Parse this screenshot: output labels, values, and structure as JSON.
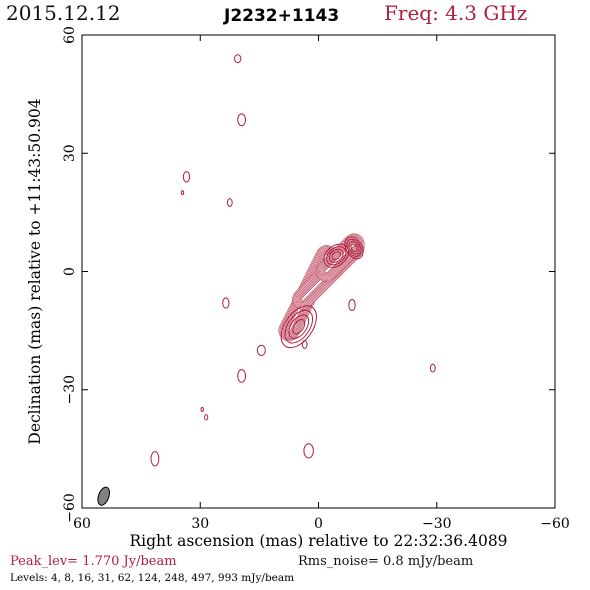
{
  "header": {
    "date": "2015.12.12",
    "source": "J2232+1143",
    "freq": "Freq: 4.3 GHz"
  },
  "footer": {
    "peak": "Peak_lev= 1.770 Jy/beam",
    "rms": "Rms_noise= 0.8 mJy/beam",
    "levels": "Levels: 4, 8, 16, 31, 62, 124, 248, 497, 993 mJy/beam"
  },
  "colors": {
    "contour": "#b0203e",
    "beam": "#808080",
    "axes": "#000000"
  },
  "chart_data": {
    "type": "contour",
    "xlabel": "Right ascension (mas) relative to 22:32:36.4089",
    "ylabel": "Declination (mas) relative to +11:43:50.904",
    "xlim": [
      60,
      -60
    ],
    "ylim": [
      -60,
      60
    ],
    "xticks": [
      60,
      30,
      0,
      -30,
      -60
    ],
    "xtick_labels": [
      "60",
      "30",
      "0",
      "−30",
      "−60"
    ],
    "yticks": [
      -60,
      -30,
      0,
      30,
      60
    ],
    "ytick_labels": [
      "−60",
      "−30",
      "0",
      "30",
      "60"
    ],
    "levels_mJy": [
      4,
      8,
      16,
      31,
      62,
      124,
      248,
      497,
      993
    ],
    "jet": {
      "stroke_levels": 9,
      "segments": [
        {
          "x1": 7.5,
          "y1": -15,
          "x2": -2,
          "y2": 4
        },
        {
          "x1": 4,
          "y1": -7,
          "x2": -9,
          "y2": 6
        },
        {
          "x1": -2,
          "y1": 0,
          "x2": -9,
          "y2": 7
        }
      ]
    },
    "components": [
      {
        "x": 5.0,
        "y": -14.0,
        "rx": 6.0,
        "ry": 3.5,
        "angle": -55
      },
      {
        "x": -4.5,
        "y": 4.0,
        "rx": 3.5,
        "ry": 2.5,
        "angle": -40
      },
      {
        "x": -9.0,
        "y": 6.0,
        "rx": 2.0,
        "ry": 3.0,
        "angle": -30
      }
    ],
    "blobs": [
      {
        "x": 20.5,
        "y": 54.0,
        "rx": 0.8,
        "ry": 1.0
      },
      {
        "x": 19.5,
        "y": 38.5,
        "rx": 1.0,
        "ry": 1.5
      },
      {
        "x": 33.5,
        "y": 24.0,
        "rx": 0.8,
        "ry": 1.3
      },
      {
        "x": 34.5,
        "y": 20.0,
        "rx": 0.3,
        "ry": 0.5
      },
      {
        "x": 22.5,
        "y": 17.5,
        "rx": 0.6,
        "ry": 1.0
      },
      {
        "x": 23.5,
        "y": -8.0,
        "rx": 0.8,
        "ry": 1.3
      },
      {
        "x": -8.5,
        "y": -8.5,
        "rx": 0.8,
        "ry": 1.4
      },
      {
        "x": 14.5,
        "y": -20.0,
        "rx": 1.0,
        "ry": 1.3
      },
      {
        "x": 3.5,
        "y": -18.5,
        "rx": 0.6,
        "ry": 1.0
      },
      {
        "x": 19.5,
        "y": -26.5,
        "rx": 1.0,
        "ry": 1.6
      },
      {
        "x": -29.0,
        "y": -24.5,
        "rx": 0.6,
        "ry": 1.0
      },
      {
        "x": 29.5,
        "y": -35.0,
        "rx": 0.3,
        "ry": 0.5
      },
      {
        "x": 28.5,
        "y": -37.0,
        "rx": 0.4,
        "ry": 0.7
      },
      {
        "x": 2.5,
        "y": -45.5,
        "rx": 1.2,
        "ry": 1.8
      },
      {
        "x": 41.5,
        "y": -47.5,
        "rx": 1.0,
        "ry": 1.8
      }
    ],
    "beam": {
      "x": 54.5,
      "y": -57.0,
      "rx": 1.3,
      "ry": 2.4,
      "angle": 20
    }
  }
}
